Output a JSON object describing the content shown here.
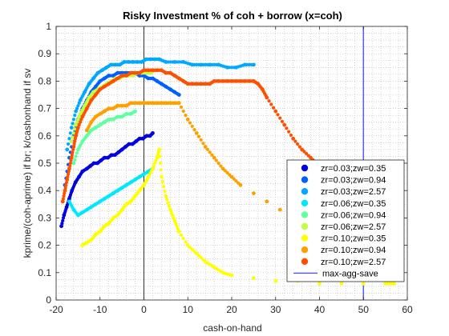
{
  "chart_data": {
    "type": "scatter",
    "title": "Risky Investment % of coh + borrow (x=coh)",
    "xlabel": "cash-on-hand",
    "ylabel": "kprime/(coh-aprime) if br; k/cashonhand if sv",
    "xlim": [
      -20,
      60
    ],
    "ylim": [
      0,
      1
    ],
    "x_ticks": [
      -20,
      -10,
      0,
      10,
      20,
      30,
      40,
      50,
      60
    ],
    "y_ticks": [
      0,
      0.1,
      0.2,
      0.3,
      0.4,
      0.5,
      0.6,
      0.7,
      0.8,
      0.9,
      1
    ],
    "grid": "minor-dotted",
    "legend_position": "bottom-right",
    "reference_lines": [
      {
        "orientation": "vertical",
        "x": 0,
        "color": "#000000"
      },
      {
        "name": "max-agg-save",
        "orientation": "vertical",
        "x": 50,
        "color": "#5050ff"
      }
    ],
    "series": [
      {
        "name": "zr=0.03;zw=0.35",
        "color": "#0000e0",
        "x": [
          -18.8,
          -18.2,
          -17.6,
          -17.0,
          -16.4,
          -15.6,
          -14.8,
          -14.0,
          -13.0,
          -12.2,
          -11.4,
          -10.6,
          -9.8,
          -9.0,
          -8.2,
          -7.4,
          -6.6,
          -5.8,
          -5.0,
          -4.2,
          -3.4,
          -2.6,
          -1.8,
          -1.0,
          -0.2,
          0.6,
          1.4,
          2.0
        ],
        "y": [
          0.27,
          0.31,
          0.34,
          0.37,
          0.4,
          0.43,
          0.45,
          0.47,
          0.48,
          0.49,
          0.5,
          0.5,
          0.51,
          0.52,
          0.52,
          0.53,
          0.53,
          0.54,
          0.55,
          0.56,
          0.57,
          0.57,
          0.58,
          0.59,
          0.59,
          0.6,
          0.6,
          0.61
        ]
      },
      {
        "name": "zr=0.03;zw=0.94",
        "color": "#0060ff",
        "x": [
          -18.0,
          -17.0,
          -16.0,
          -15.0,
          -14.0,
          -13.0,
          -12.0,
          -11.0,
          -10.0,
          -9.0,
          -8.0,
          -7.0,
          -6.0,
          -5.0,
          -4.0,
          -3.0,
          -2.0,
          -1.0,
          0.0,
          1.0,
          2.0,
          3.0,
          4.0,
          5.0,
          6.0,
          7.0,
          8.0
        ],
        "y": [
          0.42,
          0.52,
          0.6,
          0.66,
          0.7,
          0.73,
          0.76,
          0.78,
          0.8,
          0.81,
          0.82,
          0.82,
          0.83,
          0.83,
          0.83,
          0.83,
          0.83,
          0.82,
          0.82,
          0.81,
          0.81,
          0.8,
          0.79,
          0.78,
          0.77,
          0.76,
          0.75
        ]
      },
      {
        "name": "zr=0.03;zw=2.57",
        "color": "#00a8ff",
        "x": [
          -17.5,
          -16.5,
          -15.5,
          -14.5,
          -13.5,
          -12.5,
          -11.5,
          -10.5,
          -9.5,
          -8.5,
          -7.5,
          -6.5,
          -5.5,
          -4.5,
          -3.5,
          -2.5,
          -1.5,
          -0.5,
          0.5,
          1.5,
          2.5,
          3.5,
          5.0,
          7.0,
          9.0,
          11.0,
          13.0,
          15.0,
          17.0,
          19.0,
          21.0,
          23.0,
          25.0
        ],
        "y": [
          0.55,
          0.63,
          0.69,
          0.73,
          0.76,
          0.79,
          0.81,
          0.83,
          0.84,
          0.85,
          0.86,
          0.86,
          0.86,
          0.87,
          0.87,
          0.87,
          0.87,
          0.87,
          0.88,
          0.88,
          0.88,
          0.88,
          0.87,
          0.87,
          0.87,
          0.86,
          0.86,
          0.86,
          0.86,
          0.85,
          0.85,
          0.86,
          0.86
        ]
      },
      {
        "name": "zr=0.06;zw=0.35",
        "color": "#00e8ff",
        "x": [
          -17.0,
          -16.0,
          -15.0,
          -14.0,
          -13.0,
          -12.0,
          -11.0,
          -10.0,
          -9.0,
          -8.0,
          -7.0,
          -6.0,
          -5.0,
          -4.0,
          -3.0,
          -2.0,
          -1.0,
          0.0,
          1.0,
          2.0
        ],
        "y": [
          0.36,
          0.33,
          0.31,
          0.32,
          0.33,
          0.34,
          0.35,
          0.36,
          0.37,
          0.38,
          0.39,
          0.4,
          0.41,
          0.42,
          0.43,
          0.44,
          0.45,
          0.46,
          0.47,
          0.48
        ]
      },
      {
        "name": "zr=0.06;zw=0.94",
        "color": "#60ffa0",
        "x": [
          -16.0,
          -15.0,
          -14.0,
          -13.0,
          -12.0,
          -11.0,
          -10.0,
          -9.0,
          -8.0,
          -7.0,
          -6.0,
          -5.0,
          -4.0,
          -3.0,
          -2.0
        ],
        "y": [
          0.5,
          0.55,
          0.58,
          0.6,
          0.62,
          0.63,
          0.64,
          0.65,
          0.66,
          0.66,
          0.67,
          0.67,
          0.68,
          0.68,
          0.69
        ]
      },
      {
        "name": "zr=0.06;zw=2.57",
        "color": "#c0ff40",
        "x": [
          -16.5,
          -15.5,
          -14.5,
          -13.5,
          -12.5,
          -11.5,
          -10.5,
          -9.5,
          -8.5,
          -7.5,
          -6.5,
          -5.5,
          -4.5,
          -3.5,
          -2.5,
          -1.5,
          -0.5,
          0.5,
          1.5,
          2.5
        ],
        "y": [
          0.58,
          0.64,
          0.68,
          0.71,
          0.74,
          0.76,
          0.77,
          0.78,
          0.79,
          0.8,
          0.81,
          0.81,
          0.82,
          0.82,
          0.82,
          0.83,
          0.83,
          0.83,
          0.83,
          0.84
        ]
      },
      {
        "name": "zr=0.10;zw=0.35",
        "color": "#ffff00",
        "x": [
          -14.0,
          -13.0,
          -12.0,
          -11.0,
          -10.0,
          -9.0,
          -8.0,
          -7.0,
          -6.0,
          -5.0,
          -4.0,
          -3.0,
          -2.0,
          -1.0,
          0.0,
          1.0,
          2.0,
          3.0,
          3.5,
          4.0,
          5.0,
          6.0,
          7.0,
          8.0,
          10.0,
          12.0,
          14.0,
          16.0,
          18.0,
          20.0,
          25.0,
          30.0,
          35.0,
          40.0,
          45.0,
          50.0,
          55.0,
          57.0
        ],
        "y": [
          0.2,
          0.21,
          0.22,
          0.24,
          0.25,
          0.27,
          0.28,
          0.3,
          0.31,
          0.33,
          0.35,
          0.36,
          0.38,
          0.4,
          0.42,
          0.45,
          0.48,
          0.52,
          0.55,
          0.45,
          0.38,
          0.33,
          0.29,
          0.25,
          0.2,
          0.17,
          0.14,
          0.12,
          0.1,
          0.09,
          0.08,
          0.07,
          0.07,
          0.06,
          0.06,
          0.06,
          0.06,
          0.06
        ]
      },
      {
        "name": "zr=0.10;zw=0.94",
        "color": "#ffa000",
        "x": [
          -13.0,
          -12.0,
          -11.0,
          -10.0,
          -9.0,
          -8.0,
          -7.0,
          -6.0,
          -5.0,
          -4.0,
          -3.0,
          -2.0,
          -1.0,
          0.0,
          1.0,
          2.0,
          3.0,
          4.0,
          5.0,
          6.0,
          7.0,
          8.0,
          10.0,
          12.0,
          14.0,
          16.0,
          18.0,
          20.0,
          22.0,
          25.0,
          28.0,
          31.0,
          35.0,
          40.0,
          45.0,
          50.0,
          55.0
        ],
        "y": [
          0.62,
          0.65,
          0.67,
          0.68,
          0.69,
          0.7,
          0.7,
          0.71,
          0.71,
          0.71,
          0.72,
          0.72,
          0.72,
          0.72,
          0.72,
          0.72,
          0.72,
          0.72,
          0.72,
          0.72,
          0.72,
          0.72,
          0.66,
          0.61,
          0.56,
          0.52,
          0.48,
          0.45,
          0.42,
          0.39,
          0.36,
          0.33,
          0.3,
          0.28,
          0.27,
          0.26,
          0.26
        ]
      },
      {
        "name": "zr=0.10;zw=2.57",
        "color": "#ff5000",
        "x": [
          -18.5,
          -18.0,
          -17.5,
          -17.0,
          -16.5,
          -16.0,
          -15.5,
          -15.0,
          -14.0,
          -13.0,
          -12.0,
          -11.0,
          -10.0,
          -9.0,
          -8.0,
          -7.0,
          -6.0,
          -5.0,
          -4.0,
          -3.0,
          -2.0,
          -1.0,
          0.0,
          1.0,
          2.0,
          3.0,
          4.0,
          5.0,
          6.0,
          7.0,
          8.0,
          9.0,
          10.0,
          11.0,
          12.0,
          13.0,
          14.0,
          15.0,
          16.0,
          17.0,
          18.0,
          19.0,
          20.0,
          21.0,
          22.0,
          23.0,
          24.0,
          25.0,
          26.0,
          27.0,
          28.0,
          30.0,
          32.0,
          34.0,
          36.0,
          38.0,
          40.0,
          42.0
        ],
        "y": [
          0.36,
          0.4,
          0.44,
          0.48,
          0.52,
          0.56,
          0.6,
          0.63,
          0.67,
          0.7,
          0.73,
          0.75,
          0.77,
          0.78,
          0.79,
          0.8,
          0.81,
          0.82,
          0.82,
          0.83,
          0.83,
          0.83,
          0.84,
          0.84,
          0.84,
          0.84,
          0.84,
          0.83,
          0.83,
          0.82,
          0.81,
          0.8,
          0.79,
          0.79,
          0.79,
          0.79,
          0.79,
          0.79,
          0.8,
          0.8,
          0.8,
          0.8,
          0.8,
          0.8,
          0.8,
          0.8,
          0.8,
          0.8,
          0.79,
          0.77,
          0.74,
          0.69,
          0.64,
          0.59,
          0.55,
          0.52,
          0.49,
          0.46
        ]
      }
    ]
  }
}
